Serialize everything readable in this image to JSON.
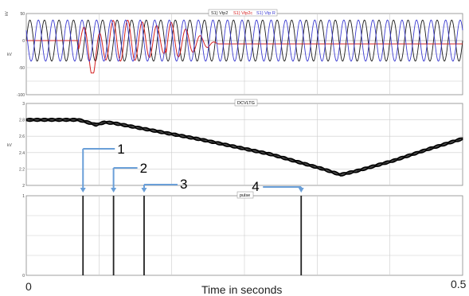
{
  "colors": {
    "vpd": "#1a1a1a",
    "vpdc": "#d42020",
    "vpd_r": "#3a3ad0",
    "dc": "#000000",
    "pulse": "#222222",
    "callout": "#6a9fd8",
    "grid": "#cccccc",
    "panel_border": "#888888"
  },
  "x_axis": {
    "label": "Time in seconds",
    "tick_start": "0",
    "tick_end": "0.5",
    "range": [
      0,
      0.5
    ]
  },
  "chart_data": [
    {
      "type": "line",
      "panel": "top",
      "legend_box": true,
      "ylabel": "kV",
      "yticks": [
        "50",
        "0",
        "-50",
        "-100"
      ],
      "ylim": [
        -100,
        50
      ],
      "xlim": [
        0,
        0.5
      ],
      "series": [
        {
          "name": "S1) Vtp2",
          "color": "#1a1a1a",
          "amplitude": 38,
          "frequency_hz": 60,
          "phase_deg": 0
        },
        {
          "name": "S1) Vtp2c",
          "color": "#d42020",
          "amplitude": 38,
          "frequency_hz": 60,
          "phase_deg": 100,
          "disturbance": {
            "from": 0.06,
            "to": 0.16,
            "min": -60,
            "max": 48
          },
          "tail_level": -6
        },
        {
          "name": "S1) Vtp R",
          "color": "#3a3ad0",
          "amplitude": 38,
          "frequency_hz": 60,
          "phase_deg": 150
        }
      ]
    },
    {
      "type": "line",
      "panel": "middle",
      "legend_box": true,
      "series_name": "DCVLTG",
      "ylabel": "kV",
      "yticks": [
        "3",
        "2.8",
        "2.6",
        "2.4",
        "2.2",
        "2"
      ],
      "ylim": [
        2,
        3
      ],
      "xlim": [
        0,
        0.5
      ],
      "points": [
        [
          0,
          2.8
        ],
        [
          0.06,
          2.8
        ],
        [
          0.08,
          2.74
        ],
        [
          0.09,
          2.77
        ],
        [
          0.1,
          2.76
        ],
        [
          0.12,
          2.72
        ],
        [
          0.2,
          2.56
        ],
        [
          0.28,
          2.38
        ],
        [
          0.34,
          2.2
        ],
        [
          0.36,
          2.13
        ],
        [
          0.38,
          2.18
        ],
        [
          0.42,
          2.3
        ],
        [
          0.46,
          2.44
        ],
        [
          0.5,
          2.57
        ]
      ],
      "ripple": 0.035
    },
    {
      "type": "bar",
      "panel": "bottom",
      "legend_box": true,
      "series_name": "pulse",
      "yticks": [
        "1",
        "0"
      ],
      "ylim": [
        0,
        1
      ],
      "xlim": [
        0,
        0.5
      ],
      "pulses": [
        0.065,
        0.1,
        0.135,
        0.315
      ],
      "callouts": [
        {
          "label": "1",
          "t": 0.065
        },
        {
          "label": "2",
          "t": 0.1
        },
        {
          "label": "3",
          "t": 0.135
        },
        {
          "label": "4",
          "t": 0.315
        }
      ]
    }
  ]
}
